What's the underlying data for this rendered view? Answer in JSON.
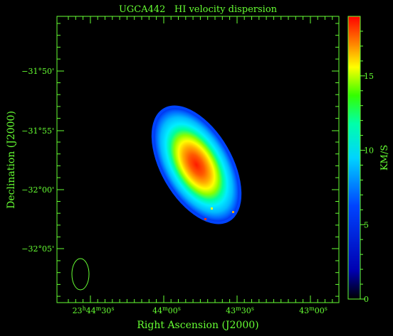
{
  "chart_data": {
    "type": "heatmap",
    "title": "UGCA442   HI velocity dispersion",
    "xlabel": "Right Ascension (J2000)",
    "ylabel": "Declination (J2000)",
    "x_ticks": [
      {
        "h": "23",
        "m": "44",
        "s": "30"
      },
      {
        "h": "",
        "m": "44",
        "s": "00"
      },
      {
        "h": "",
        "m": "43",
        "s": "30"
      },
      {
        "h": "",
        "m": "43",
        "s": "00"
      }
    ],
    "y_ticks": [
      {
        "label": "-31°50'",
        "dec_arcmin": -1910
      },
      {
        "label": "-31°55'",
        "dec_arcmin": -1915
      },
      {
        "label": "-32°00'",
        "dec_arcmin": -1920
      },
      {
        "label": "-32°05'",
        "dec_arcmin": -1925
      }
    ],
    "colorbar": {
      "label": "KM/S",
      "min": 0,
      "max": 19,
      "ticks": [
        0,
        5,
        10,
        15
      ],
      "colormap": "rainbow"
    },
    "galaxy_dispersion_kms": {
      "center": 18,
      "edge": 4
    },
    "beam": "ellipse"
  },
  "colors": {
    "axis": "#66ff33",
    "background": "#000000"
  }
}
